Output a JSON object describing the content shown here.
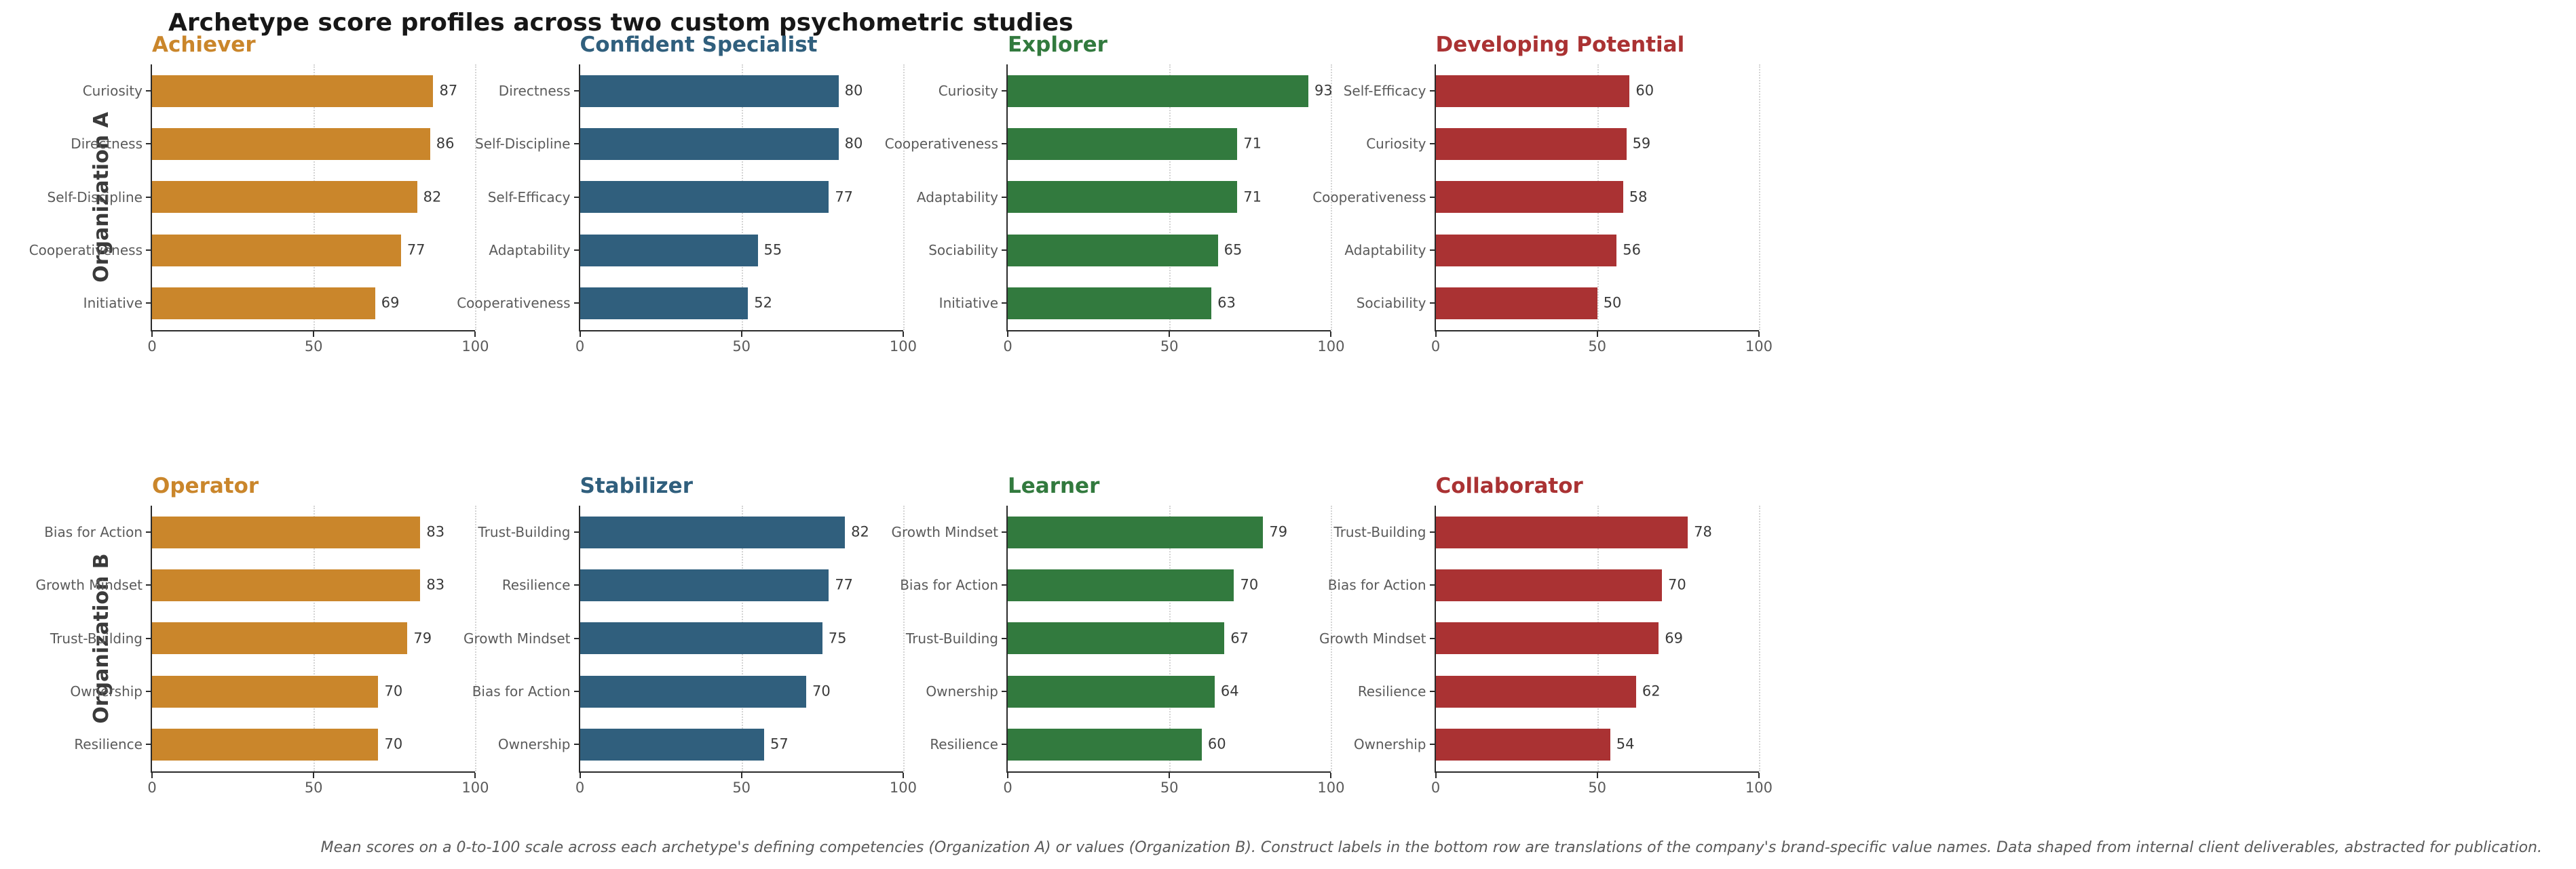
{
  "title": "Archetype score profiles across two custom psychometric studies",
  "caption": "Mean scores on a 0-to-100 scale across each archetype's defining competencies (Organization A) or values (Organization B). Construct labels in the bottom row are translations of the company's brand-specific value names. Data shaped from internal client deliverables, abstracted for publication.",
  "row_labels": [
    "Organization A",
    "Organization B"
  ],
  "axis": {
    "xlim": [
      0,
      100
    ],
    "ticks": [
      0,
      50,
      100
    ],
    "grid_ticks": [
      50,
      100
    ],
    "grid_style": "dotted"
  },
  "colors": {
    "orange": "#CA862B",
    "blue": "#305F7D",
    "green": "#327A3E",
    "red": "#AA3233",
    "suptitle": "#171717",
    "axis_text": "#5a5a5a",
    "value_text": "#3a3a3a",
    "spine": "#2b2b2b",
    "gridline": "#d4d4d4",
    "caption_text": "#5a5a5a"
  },
  "chart_data": [
    {
      "type": "bar",
      "orientation": "horizontal",
      "title": "Achiever",
      "group": "Organization A",
      "color": "#CA862B",
      "categories": [
        "Curiosity",
        "Directness",
        "Self-Discipline",
        "Cooperativeness",
        "Initiative"
      ],
      "values": [
        87,
        86,
        82,
        77,
        69
      ],
      "xlim": [
        0,
        100
      ]
    },
    {
      "type": "bar",
      "orientation": "horizontal",
      "title": "Confident Specialist",
      "group": "Organization A",
      "color": "#305F7D",
      "categories": [
        "Directness",
        "Self-Discipline",
        "Self-Efficacy",
        "Adaptability",
        "Cooperativeness"
      ],
      "values": [
        80,
        80,
        77,
        55,
        52
      ],
      "xlim": [
        0,
        100
      ]
    },
    {
      "type": "bar",
      "orientation": "horizontal",
      "title": "Explorer",
      "group": "Organization A",
      "color": "#327A3E",
      "categories": [
        "Curiosity",
        "Cooperativeness",
        "Adaptability",
        "Sociability",
        "Initiative"
      ],
      "values": [
        93,
        71,
        71,
        65,
        63
      ],
      "xlim": [
        0,
        100
      ]
    },
    {
      "type": "bar",
      "orientation": "horizontal",
      "title": "Developing Potential",
      "group": "Organization A",
      "color": "#AA3233",
      "categories": [
        "Self-Efficacy",
        "Curiosity",
        "Cooperativeness",
        "Adaptability",
        "Sociability"
      ],
      "values": [
        60,
        59,
        58,
        56,
        50
      ],
      "xlim": [
        0,
        100
      ]
    },
    {
      "type": "bar",
      "orientation": "horizontal",
      "title": "Operator",
      "group": "Organization B",
      "color": "#CA862B",
      "categories": [
        "Bias for Action",
        "Growth Mindset",
        "Trust-Building",
        "Ownership",
        "Resilience"
      ],
      "values": [
        83,
        83,
        79,
        70,
        70
      ],
      "xlim": [
        0,
        100
      ]
    },
    {
      "type": "bar",
      "orientation": "horizontal",
      "title": "Stabilizer",
      "group": "Organization B",
      "color": "#305F7D",
      "categories": [
        "Trust-Building",
        "Resilience",
        "Growth Mindset",
        "Bias for Action",
        "Ownership"
      ],
      "values": [
        82,
        77,
        75,
        70,
        57
      ],
      "xlim": [
        0,
        100
      ]
    },
    {
      "type": "bar",
      "orientation": "horizontal",
      "title": "Learner",
      "group": "Organization B",
      "color": "#327A3E",
      "categories": [
        "Growth Mindset",
        "Bias for Action",
        "Trust-Building",
        "Ownership",
        "Resilience"
      ],
      "values": [
        79,
        70,
        67,
        64,
        60
      ],
      "xlim": [
        0,
        100
      ]
    },
    {
      "type": "bar",
      "orientation": "horizontal",
      "title": "Collaborator",
      "group": "Organization B",
      "color": "#AA3233",
      "categories": [
        "Trust-Building",
        "Bias for Action",
        "Growth Mindset",
        "Resilience",
        "Ownership"
      ],
      "values": [
        78,
        70,
        69,
        62,
        54
      ],
      "xlim": [
        0,
        100
      ]
    }
  ]
}
